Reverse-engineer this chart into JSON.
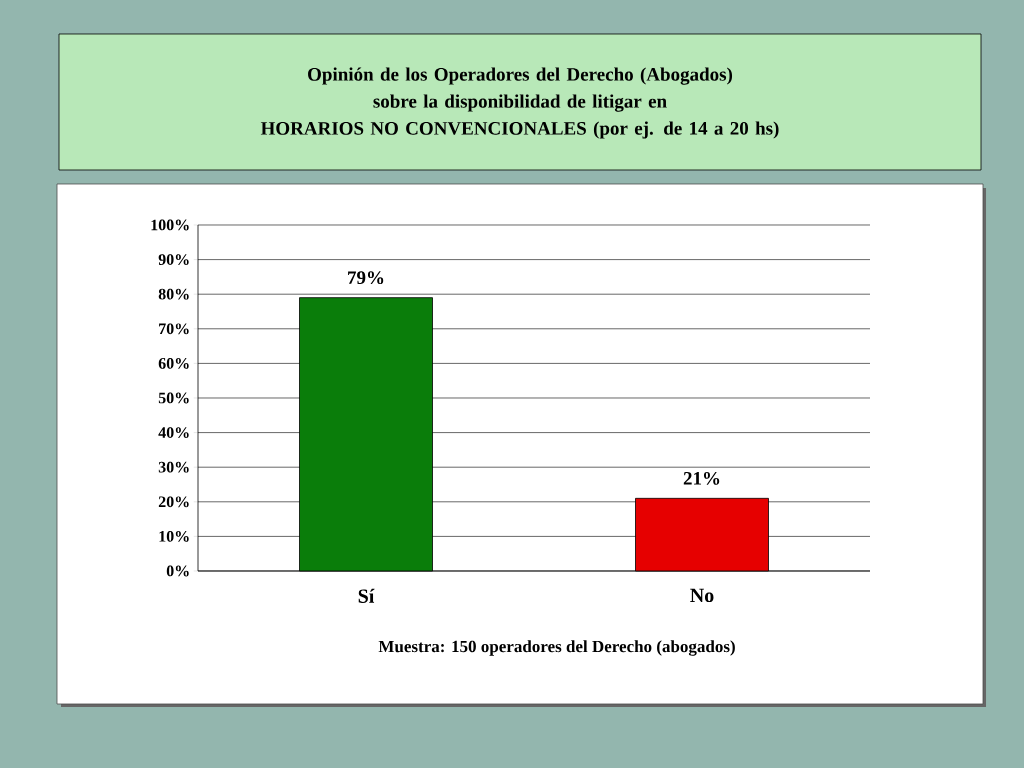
{
  "chart_data": {
    "type": "bar",
    "title": "Opinión de los Operadores del Derecho (Abogados)\nsobre la disponibilidad de litigar en\nHORARIOS NO CONVENCIONALES (por ej. de 14 a 20 hs)",
    "categories": [
      "Sí",
      "No"
    ],
    "values": [
      79,
      21
    ],
    "colors": [
      "#0a7d0a",
      "#e60000"
    ],
    "ylim": [
      0,
      100
    ],
    "yticks": [
      {
        "value": 0,
        "label": "0%"
      },
      {
        "value": 10,
        "label": "10%"
      },
      {
        "value": 20,
        "label": "20%"
      },
      {
        "value": 30,
        "label": "30%"
      },
      {
        "value": 40,
        "label": "40%"
      },
      {
        "value": 50,
        "label": "50%"
      },
      {
        "value": 60,
        "label": "60%"
      },
      {
        "value": 70,
        "label": "70%"
      },
      {
        "value": 80,
        "label": "80%"
      },
      {
        "value": 90,
        "label": "90%"
      },
      {
        "value": 100,
        "label": "100%"
      }
    ],
    "grid": "y",
    "value_labels": [
      "79%",
      "21%"
    ],
    "annotations": [
      "Muestra: 150 operadores del Derecho (abogados)"
    ]
  }
}
